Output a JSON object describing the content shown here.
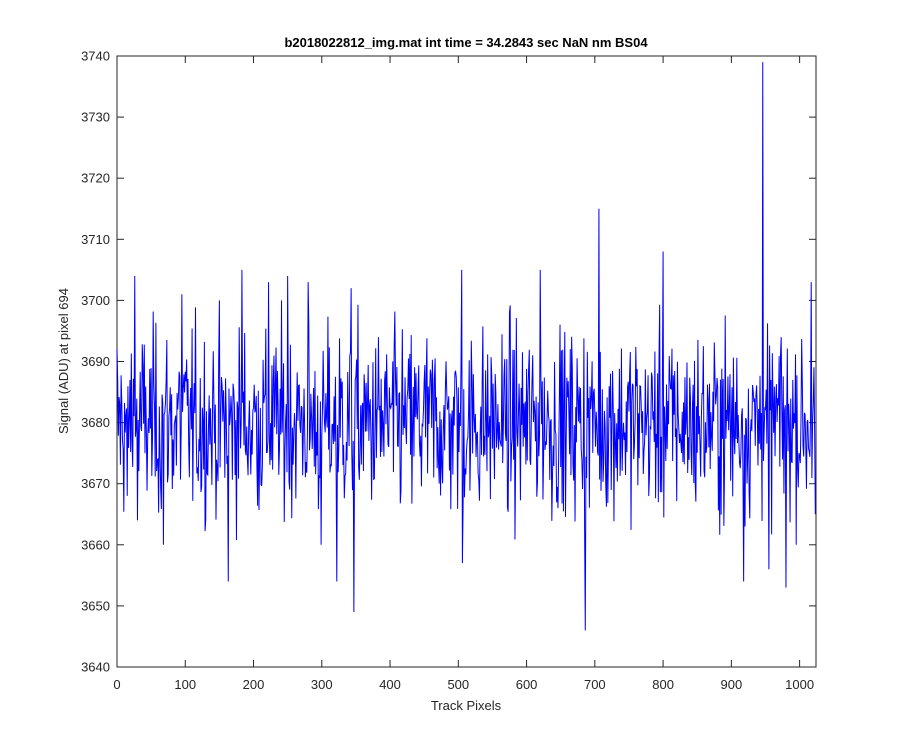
{
  "chart_data": {
    "type": "line",
    "title": "b2018022812_img.mat int time = 34.2843 sec  NaN nm BS04",
    "xlabel": "Track Pixels",
    "ylabel": "Signal (ADU) at pixel 694",
    "xlim": [
      0,
      1024
    ],
    "ylim": [
      3640,
      3740
    ],
    "xticks": [
      0,
      100,
      200,
      300,
      400,
      500,
      600,
      700,
      800,
      900,
      1000
    ],
    "yticks": [
      3640,
      3650,
      3660,
      3670,
      3680,
      3690,
      3700,
      3710,
      3720,
      3730,
      3740
    ],
    "grid": false,
    "line_color": "#0000ff",
    "series": [
      {
        "num_points": 1024,
        "baseline": 3680,
        "noise_sd": 7.5,
        "notable_points": [
          {
            "x": 0,
            "y": 3692
          },
          {
            "x": 15,
            "y": 3668
          },
          {
            "x": 26,
            "y": 3704
          },
          {
            "x": 30,
            "y": 3664
          },
          {
            "x": 68,
            "y": 3660
          },
          {
            "x": 95,
            "y": 3701
          },
          {
            "x": 163,
            "y": 3654
          },
          {
            "x": 183,
            "y": 3705
          },
          {
            "x": 222,
            "y": 3703
          },
          {
            "x": 250,
            "y": 3704
          },
          {
            "x": 280,
            "y": 3703
          },
          {
            "x": 299,
            "y": 3660
          },
          {
            "x": 322,
            "y": 3654
          },
          {
            "x": 343,
            "y": 3702
          },
          {
            "x": 347,
            "y": 3649
          },
          {
            "x": 505,
            "y": 3705
          },
          {
            "x": 506,
            "y": 3657
          },
          {
            "x": 620,
            "y": 3705
          },
          {
            "x": 686,
            "y": 3646
          },
          {
            "x": 706,
            "y": 3715
          },
          {
            "x": 800,
            "y": 3708
          },
          {
            "x": 918,
            "y": 3654
          },
          {
            "x": 946,
            "y": 3739
          },
          {
            "x": 955,
            "y": 3656
          },
          {
            "x": 980,
            "y": 3653
          },
          {
            "x": 1017,
            "y": 3703
          },
          {
            "x": 1023,
            "y": 3665
          }
        ]
      }
    ]
  }
}
